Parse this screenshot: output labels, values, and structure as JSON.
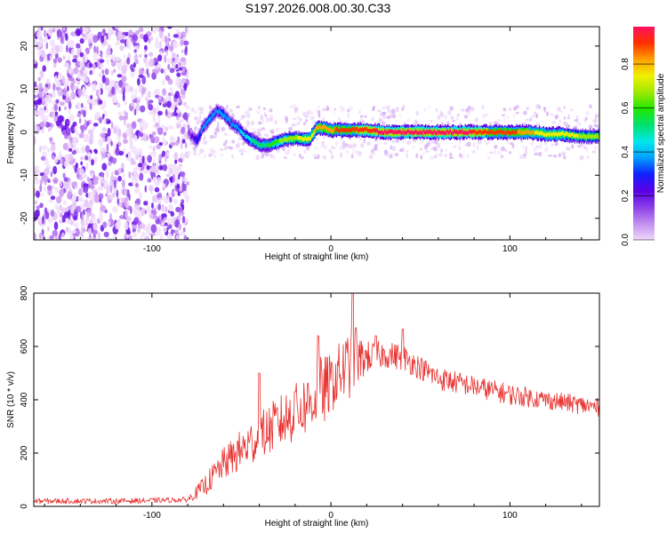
{
  "title": "S197.2026.008.00.30.C33",
  "colors": {
    "snr_line": "#e8302e",
    "axes": "#000000",
    "background": "#ffffff"
  },
  "chart_data": [
    {
      "type": "heatmap",
      "xlabel": "Height of straight line (km)",
      "ylabel": "Frequency (Hz)",
      "xlim": [
        -166,
        150
      ],
      "ylim": [
        -25,
        24.5
      ],
      "xticks": [
        -100,
        0,
        100
      ],
      "yticks": [
        -20,
        -10,
        0,
        10,
        20
      ],
      "colorbar": {
        "label": "Normalized spectral amplitude",
        "range": [
          0,
          0.97
        ],
        "ticks": [
          0.0,
          0.2,
          0.4,
          0.6,
          0.8
        ],
        "colormap": [
          "#f0d8fa",
          "#c08ef0",
          "#8a3fe8",
          "#5a00e6",
          "#1020ff",
          "#00a0ff",
          "#00e8e8",
          "#00e070",
          "#20e800",
          "#a0e800",
          "#f0f000",
          "#ffa000",
          "#ff3000",
          "#ff1060"
        ]
      },
      "noise_region_x": [
        -166,
        -80
      ],
      "ridge": [
        {
          "x": -80,
          "y": 0,
          "v": 0.15
        },
        {
          "x": -75,
          "y": -2,
          "v": 0.3
        },
        {
          "x": -72,
          "y": 1,
          "v": 0.35
        },
        {
          "x": -68,
          "y": 3,
          "v": 0.4
        },
        {
          "x": -64,
          "y": 5,
          "v": 0.35
        },
        {
          "x": -60,
          "y": 4,
          "v": 0.4
        },
        {
          "x": -56,
          "y": 2,
          "v": 0.35
        },
        {
          "x": -52,
          "y": 1,
          "v": 0.4
        },
        {
          "x": -48,
          "y": -1,
          "v": 0.45
        },
        {
          "x": -44,
          "y": -2,
          "v": 0.5
        },
        {
          "x": -40,
          "y": -3,
          "v": 0.55
        },
        {
          "x": -36,
          "y": -3,
          "v": 0.55
        },
        {
          "x": -32,
          "y": -2.5,
          "v": 0.6
        },
        {
          "x": -28,
          "y": -2,
          "v": 0.65
        },
        {
          "x": -24,
          "y": -1.5,
          "v": 0.7
        },
        {
          "x": -20,
          "y": -1.5,
          "v": 0.7
        },
        {
          "x": -16,
          "y": -1.5,
          "v": 0.75
        },
        {
          "x": -12,
          "y": -1.5,
          "v": 0.75
        },
        {
          "x": -8,
          "y": 1,
          "v": 0.8
        },
        {
          "x": -4,
          "y": 1,
          "v": 0.85
        },
        {
          "x": 0,
          "y": 0.5,
          "v": 0.85
        },
        {
          "x": 10,
          "y": 0.5,
          "v": 0.9
        },
        {
          "x": 20,
          "y": 0.5,
          "v": 0.92
        },
        {
          "x": 30,
          "y": 0,
          "v": 0.95
        },
        {
          "x": 40,
          "y": 0,
          "v": 0.95
        },
        {
          "x": 50,
          "y": 0,
          "v": 0.95
        },
        {
          "x": 60,
          "y": 0,
          "v": 0.95
        },
        {
          "x": 70,
          "y": 0,
          "v": 0.95
        },
        {
          "x": 80,
          "y": 0,
          "v": 0.93
        },
        {
          "x": 90,
          "y": 0,
          "v": 0.9
        },
        {
          "x": 100,
          "y": 0,
          "v": 0.9
        },
        {
          "x": 110,
          "y": 0,
          "v": 0.8
        },
        {
          "x": 120,
          "y": -0.5,
          "v": 0.75
        },
        {
          "x": 130,
          "y": -0.5,
          "v": 0.75
        },
        {
          "x": 140,
          "y": -1,
          "v": 0.7
        },
        {
          "x": 150,
          "y": -1,
          "v": 0.7
        }
      ]
    },
    {
      "type": "line",
      "xlabel": "Height of straight line (km)",
      "ylabel": "SNR (10 * v/v)",
      "xlim": [
        -166,
        150
      ],
      "ylim": [
        0,
        800
      ],
      "xticks": [
        -100,
        0,
        100
      ],
      "yticks": [
        0,
        200,
        400,
        600,
        800
      ],
      "series": [
        {
          "x": [
            -166,
            -140,
            -120,
            -100,
            -80,
            -70,
            -60,
            -50,
            -40,
            -30,
            -20,
            -10,
            -5,
            0,
            5,
            10,
            20,
            30,
            40,
            50,
            60,
            80,
            100,
            120,
            140,
            150
          ],
          "y": [
            20,
            20,
            20,
            22,
            25,
            80,
            160,
            210,
            260,
            310,
            350,
            400,
            430,
            460,
            500,
            530,
            560,
            570,
            560,
            520,
            480,
            450,
            420,
            400,
            380,
            370
          ],
          "noise": [
            10,
            10,
            10,
            10,
            10,
            40,
            60,
            80,
            90,
            100,
            110,
            120,
            140,
            110,
            120,
            130,
            60,
            50,
            50,
            45,
            45,
            40,
            40,
            35,
            35,
            35
          ],
          "peaks": [
            {
              "x": -40,
              "y": 500
            },
            {
              "x": -20,
              "y": 430
            },
            {
              "x": -7,
              "y": 640
            },
            {
              "x": 12,
              "y": 800
            },
            {
              "x": 14,
              "y": 670
            },
            {
              "x": 25,
              "y": 640
            },
            {
              "x": 40,
              "y": 665
            }
          ]
        }
      ]
    }
  ]
}
